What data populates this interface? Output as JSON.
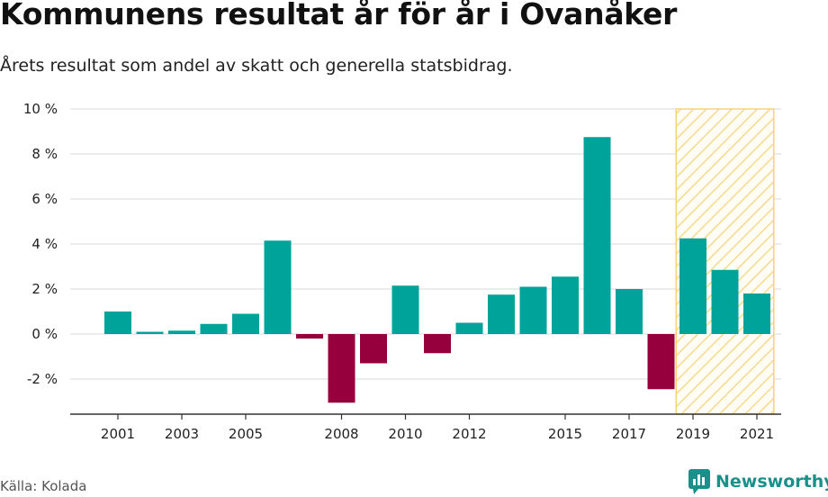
{
  "title": "Kommunens resultat år för år i Ovanåker",
  "subtitle": "Årets resultat som andel av skatt och generella statsbidrag.",
  "source": "Källa: Kolada",
  "brand": {
    "name": "Newsworthy",
    "icon": "newsworthy-logo-icon",
    "color": "#1b8f8a"
  },
  "colors": {
    "positive": "#00a39a",
    "negative": "#96003c",
    "highlight_fill": "#f6d27a",
    "grid": "#d9d9d9",
    "axis": "#333333"
  },
  "chart_data": {
    "type": "bar",
    "categories": [
      "2001",
      "2002",
      "2003",
      "2004",
      "2005",
      "2006",
      "2007",
      "2008",
      "2009",
      "2010",
      "2011",
      "2012",
      "2013",
      "2014",
      "2015",
      "2016",
      "2017",
      "2018",
      "2019",
      "2020",
      "2021"
    ],
    "values": [
      1.0,
      0.1,
      0.15,
      0.45,
      0.9,
      4.15,
      -0.2,
      -3.05,
      -1.3,
      2.15,
      -0.85,
      0.5,
      1.75,
      2.1,
      2.55,
      8.75,
      2.0,
      -2.45,
      4.25,
      2.85,
      1.8
    ],
    "x_tick_labels": [
      "2001",
      "2003",
      "2005",
      "2008",
      "2010",
      "2012",
      "2015",
      "2017",
      "2019",
      "2021"
    ],
    "y_ticks": [
      -2,
      0,
      2,
      4,
      6,
      8,
      10
    ],
    "y_tick_labels": [
      "-2 %",
      "0 %",
      "2 %",
      "4 %",
      "6 %",
      "8 %",
      "10 %"
    ],
    "ylim": [
      -3.6,
      10.0
    ],
    "grid": true,
    "highlight": {
      "from": "2019",
      "to": "2021",
      "pattern": "diagonal-hatch"
    }
  }
}
